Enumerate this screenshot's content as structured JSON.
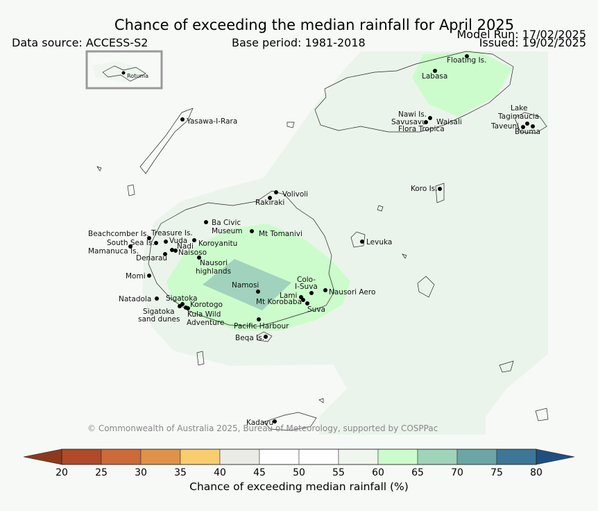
{
  "header": {
    "title": "Chance of exceeding the median rainfall for April 2025",
    "data_source": "Data source: ACCESS-S2",
    "base_period": "Base period: 1981-2018",
    "model_run": "Model Run: 17/02/2025",
    "issued": "Issued: 19/02/2025"
  },
  "map": {
    "inset_label": "Rotuma",
    "copyright": "© Commonwealth of Australia 2025, Bureau of Meteorology, supported by COSPPac",
    "places": [
      {
        "name": "Floating Is.",
        "lines": [
          "Floating Is."
        ]
      },
      {
        "name": "Labasa",
        "lines": [
          "Labasa"
        ]
      },
      {
        "name": "Yasawa-I-Rara",
        "lines": [
          "Yasawa-I-Rara"
        ]
      },
      {
        "name": "Nawi Is.",
        "lines": [
          "Nawi Is."
        ]
      },
      {
        "name": "Savusavu",
        "lines": [
          "Savusavu"
        ]
      },
      {
        "name": "Waisali",
        "lines": [
          "Waisali"
        ]
      },
      {
        "name": "Flora Tropica",
        "lines": [
          "Flora Tropica"
        ]
      },
      {
        "name": "Lake Tagimaucia",
        "lines": [
          "Lake",
          "Tagimaucia"
        ]
      },
      {
        "name": "Taveuni",
        "lines": [
          "Taveuni"
        ]
      },
      {
        "name": "Bouma",
        "lines": [
          "Bouma"
        ]
      },
      {
        "name": "Koro Is.",
        "lines": [
          "Koro Is."
        ]
      },
      {
        "name": "Volivoli",
        "lines": [
          "Volivoli"
        ]
      },
      {
        "name": "Rakiraki",
        "lines": [
          "Rakiraki"
        ]
      },
      {
        "name": "Ba Civic Museum",
        "lines": [
          "Ba Civic",
          "Museum"
        ]
      },
      {
        "name": "Mt Tomanivi",
        "lines": [
          "Mt Tomanivi"
        ]
      },
      {
        "name": "Levuka",
        "lines": [
          "Levuka"
        ]
      },
      {
        "name": "Beachcomber Is.",
        "lines": [
          "Beachcomber Is."
        ]
      },
      {
        "name": "Treasure Is.",
        "lines": [
          "Treasure Is."
        ]
      },
      {
        "name": "South Sea Is.",
        "lines": [
          "South Sea Is."
        ]
      },
      {
        "name": "Vuda",
        "lines": [
          "Vuda"
        ]
      },
      {
        "name": "Nadi",
        "lines": [
          "Nadi"
        ]
      },
      {
        "name": "Koroyanitu",
        "lines": [
          "Koroyanitu"
        ]
      },
      {
        "name": "Mamanuca Is.",
        "lines": [
          "Mamanuca Is."
        ]
      },
      {
        "name": "Naisoso",
        "lines": [
          "Naisoso"
        ]
      },
      {
        "name": "Denarau",
        "lines": [
          "Denarau"
        ]
      },
      {
        "name": "Nausori highlands",
        "lines": [
          "Nausori",
          "highlands"
        ]
      },
      {
        "name": "Momi",
        "lines": [
          "Momi"
        ]
      },
      {
        "name": "Namosi",
        "lines": [
          "Namosi"
        ]
      },
      {
        "name": "Colo-I-Suva",
        "lines": [
          "Colo-",
          "I-Suva"
        ]
      },
      {
        "name": "Nausori Aero",
        "lines": [
          "Nausori Aero"
        ]
      },
      {
        "name": "Lami",
        "lines": [
          "Lami"
        ]
      },
      {
        "name": "Mt Korobaba",
        "lines": [
          "Mt Korobaba"
        ]
      },
      {
        "name": "Suva",
        "lines": [
          "Suva"
        ]
      },
      {
        "name": "Natadola",
        "lines": [
          "Natadola"
        ]
      },
      {
        "name": "Sigatoka",
        "lines": [
          "Sigatoka"
        ]
      },
      {
        "name": "Korotogo",
        "lines": [
          "Korotogo"
        ]
      },
      {
        "name": "Sigatoka sand dunes",
        "lines": [
          "Sigatoka",
          "sand dunes"
        ]
      },
      {
        "name": "Kula Wild Adventure",
        "lines": [
          "Kula Wild",
          "Adventure"
        ]
      },
      {
        "name": "Pacific Harbour",
        "lines": [
          "Pacific Harbour"
        ]
      },
      {
        "name": "Beqa Is.",
        "lines": [
          "Beqa Is."
        ]
      },
      {
        "name": "Kadavu",
        "lines": [
          "Kadavu"
        ]
      }
    ]
  },
  "colorbar": {
    "label": "Chance of exceeding median rainfall (%)",
    "ticks": [
      "20",
      "25",
      "30",
      "35",
      "40",
      "45",
      "50",
      "55",
      "60",
      "65",
      "70",
      "75",
      "80"
    ],
    "under_color": "#8c3a1e",
    "over_color": "#1f4f80",
    "colors": [
      "#b04a28",
      "#cc6a38",
      "#e0924a",
      "#f9cd6e",
      "#ebebe6",
      "#ffffff",
      "#ffffff",
      "#eef6ee",
      "#ccfccc",
      "#9fd4bb",
      "#6ba6a5",
      "#3c7798"
    ]
  },
  "legend_colors": {
    "band_55_60": "#ebf4ea",
    "band_60_65": "#ccfccc",
    "band_65_70": "#a0d2bd",
    "water": "#f7f9f7"
  }
}
